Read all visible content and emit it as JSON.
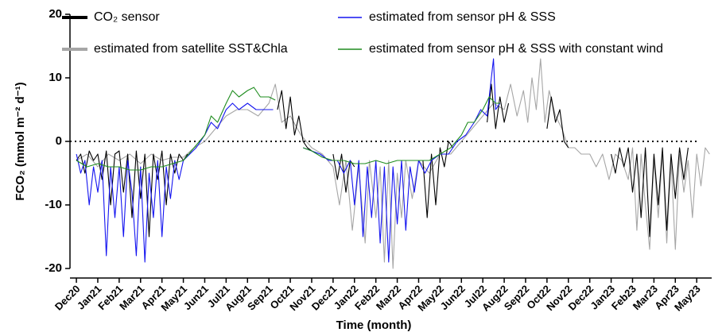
{
  "chart_data": {
    "type": "line",
    "x_label": "Time (month)",
    "y_label": "FCO₂ (mmol m⁻² d⁻¹)",
    "xlim": [
      -0.3,
      29.7
    ],
    "ylim": [
      -20,
      20
    ],
    "yticks": [
      20,
      10,
      0,
      -10,
      -20
    ],
    "xticks": [
      {
        "value": 0,
        "label": "Dec20"
      },
      {
        "value": 1,
        "label": "Jan21"
      },
      {
        "value": 2,
        "label": "Feb21"
      },
      {
        "value": 3,
        "label": "Mar21"
      },
      {
        "value": 4,
        "label": "Apr21"
      },
      {
        "value": 5,
        "label": "May21"
      },
      {
        "value": 6,
        "label": "Jun21"
      },
      {
        "value": 7,
        "label": "Jul21"
      },
      {
        "value": 8,
        "label": "Aug21"
      },
      {
        "value": 9,
        "label": "Sep21"
      },
      {
        "value": 10,
        "label": "Oct21"
      },
      {
        "value": 11,
        "label": "Nov21"
      },
      {
        "value": 12,
        "label": "Dec21"
      },
      {
        "value": 13,
        "label": "Jan22"
      },
      {
        "value": 14,
        "label": "Feb22"
      },
      {
        "value": 15,
        "label": "Mar22"
      },
      {
        "value": 16,
        "label": "Apr22"
      },
      {
        "value": 17,
        "label": "May22"
      },
      {
        "value": 18,
        "label": "Jun22"
      },
      {
        "value": 19,
        "label": "Jul22"
      },
      {
        "value": 20,
        "label": "Aug22"
      },
      {
        "value": 21,
        "label": "Sep22"
      },
      {
        "value": 22,
        "label": "Oct22"
      },
      {
        "value": 23,
        "label": "Nov22"
      },
      {
        "value": 24,
        "label": "Dec22"
      },
      {
        "value": 25,
        "label": "Jan23"
      },
      {
        "value": 26,
        "label": "Feb23"
      },
      {
        "value": 27,
        "label": "Mar23"
      },
      {
        "value": 28,
        "label": "Apr23"
      },
      {
        "value": 29,
        "label": "May23"
      }
    ],
    "reference_line": 0,
    "series": [
      {
        "name": "CO₂ sensor",
        "color": "#000000",
        "x": [
          0,
          0.2,
          0.4,
          0.6,
          0.8,
          1,
          1.2,
          1.4,
          1.6,
          1.8,
          2,
          2.2,
          2.4,
          2.6,
          2.8,
          3,
          3.2,
          3.4,
          3.6,
          3.8,
          4,
          4.2,
          4.4,
          4.6,
          4.8,
          5,
          5.2,
          5.5,
          9.4,
          9.6,
          9.8,
          10,
          10.2,
          10.4,
          10.6,
          10.8,
          11,
          11.3,
          12,
          12.2,
          12.4,
          12.6,
          12.8,
          13,
          13.5,
          16.2,
          16.4,
          16.6,
          16.8,
          17,
          17.2,
          17.4,
          17.6,
          18,
          19.2,
          19.4,
          19.6,
          19.8,
          20,
          20.2,
          21,
          22,
          22.2,
          22.4,
          22.6,
          22.8,
          23,
          24.5,
          25,
          25.2,
          25.4,
          25.6,
          25.8,
          26,
          26.2,
          26.4,
          26.6,
          26.8,
          27,
          27.2,
          27.4,
          27.6,
          27.8,
          28,
          28.2,
          28.4,
          28.6
        ],
        "values": [
          -3,
          -2,
          -5,
          -1.5,
          -3,
          -2,
          -6,
          -1.5,
          -10,
          -2,
          -1.5,
          -8,
          -2,
          -12,
          -1.5,
          -9,
          -2,
          -15,
          -2,
          -6,
          -1.5,
          -10,
          -2,
          -5,
          -2,
          -3,
          -2,
          null,
          5,
          8,
          2,
          7,
          1,
          4,
          0,
          -1,
          -1.5,
          null,
          -2,
          -6,
          -2,
          -8,
          -3,
          -4,
          null,
          -3,
          -12,
          -2,
          -10,
          -1,
          -4,
          0,
          -1,
          null,
          3,
          9,
          2,
          7,
          3,
          6,
          null,
          2,
          7,
          3,
          5,
          0,
          -1,
          null,
          -2,
          -5,
          -1,
          -4,
          -1,
          -8,
          -2,
          -12,
          -1,
          -15,
          -2,
          -10,
          -1,
          -14,
          -2,
          -9,
          -1,
          -6,
          -1
        ]
      },
      {
        "name": "estimated from satellite SST&Chla",
        "color": "#a6a6a6",
        "x": [
          0,
          0.5,
          1,
          1.5,
          2,
          2.5,
          3,
          3.5,
          4,
          4.5,
          5,
          5.5,
          6,
          6.5,
          7,
          7.5,
          8,
          8.5,
          9,
          9.3,
          9.6,
          10,
          10.5,
          11,
          11.5,
          12,
          12.3,
          12.6,
          12.9,
          13.2,
          13.5,
          13.7,
          14,
          14.2,
          14.4,
          14.6,
          14.8,
          15,
          15.2,
          15.4,
          15.7,
          16,
          16.5,
          17,
          17.5,
          18,
          18.5,
          19,
          19.5,
          20,
          20.3,
          20.6,
          20.9,
          21.1,
          21.3,
          21.5,
          21.7,
          21.9,
          22.1,
          22.4,
          22.7,
          23,
          23.3,
          23.6,
          24,
          24.3,
          24.6,
          24.9,
          25.2,
          25.5,
          25.8,
          26,
          26.2,
          26.4,
          26.6,
          26.8,
          27,
          27.2,
          27.4,
          27.6,
          27.8,
          28,
          28.2,
          28.4,
          28.6,
          28.8,
          29,
          29.2,
          29.4,
          29.6
        ],
        "values": [
          -3,
          -2,
          -4,
          -2,
          -3,
          -2,
          -3.5,
          -2,
          -3,
          -2.5,
          -2.5,
          -1,
          0,
          2,
          4,
          5,
          5,
          4,
          6,
          9,
          3,
          4,
          1,
          -1,
          -2,
          -4,
          -10,
          -3,
          -14,
          -4,
          -16,
          -3,
          -12,
          -4,
          -19,
          -3,
          -20,
          -5,
          -12,
          -3,
          -9,
          -3,
          -5,
          -2,
          -2,
          0,
          2,
          4,
          6,
          5,
          9,
          4,
          8,
          3,
          10,
          5,
          13,
          3,
          8,
          4,
          2,
          -1,
          -1,
          -2,
          -2,
          -4,
          -2,
          -6,
          -2,
          -3,
          -6,
          -1,
          -14,
          -2,
          -10,
          -17,
          -3,
          -12,
          -2,
          -16,
          -3,
          -17,
          -2,
          -8,
          -3,
          -12,
          -2,
          -7,
          -1,
          -2
        ]
      },
      {
        "name": "estimated from sensor pH & SSS",
        "color": "#1414f0",
        "x": [
          0,
          0.2,
          0.4,
          0.6,
          0.8,
          1,
          1.2,
          1.4,
          1.6,
          1.8,
          2,
          2.2,
          2.4,
          2.6,
          2.8,
          3,
          3.2,
          3.4,
          3.6,
          3.8,
          4,
          4.2,
          4.4,
          4.6,
          4.8,
          5,
          5.3,
          5.6,
          6,
          6.3,
          6.6,
          7,
          7.3,
          7.6,
          8,
          8.4,
          8.8,
          9.2,
          9.6,
          10.6,
          11,
          11.4,
          11.8,
          12.2,
          12.5,
          12.8,
          13,
          13.2,
          13.4,
          13.6,
          13.8,
          14,
          14.2,
          14.4,
          14.6,
          14.8,
          15,
          15.2,
          15.4,
          15.6,
          15.8,
          16,
          16.3,
          16.6,
          17,
          17.4,
          17.8,
          18.2,
          18.6,
          18.9,
          19.2,
          19.4,
          19.5,
          19.6,
          19.8
        ],
        "values": [
          -2,
          -5,
          -3,
          -10,
          -4,
          -8,
          -3,
          -18,
          -4,
          -12,
          -4,
          -15,
          -3,
          -8,
          -18,
          -4,
          -19,
          -5,
          -12,
          -3,
          -15,
          -4,
          -9,
          -3,
          -6,
          -3,
          -2,
          -1,
          1,
          3,
          2,
          5,
          6,
          5,
          6,
          5,
          5,
          5,
          null,
          -1,
          -1.5,
          -2,
          -3,
          -3,
          -5,
          -3,
          -10,
          -3,
          -15,
          -4,
          -12,
          -3,
          -16,
          -4,
          -19,
          -4,
          -13,
          -3,
          -14,
          -4,
          -8,
          -3,
          -5,
          -3,
          -2,
          -2,
          0,
          1,
          3,
          5,
          4,
          10,
          13,
          5,
          6
        ]
      },
      {
        "name": "estimated from sensor pH & SSS with constant wind",
        "color": "#1e8c1e",
        "x": [
          0,
          0.5,
          1,
          1.5,
          2,
          2.5,
          3,
          3.5,
          4,
          4.5,
          5,
          5.5,
          6,
          6.3,
          6.6,
          7,
          7.3,
          7.6,
          8,
          8.3,
          8.6,
          9,
          9.3,
          9.6,
          10.6,
          11,
          11.5,
          12,
          12.5,
          13,
          13.5,
          14,
          14.5,
          15,
          15.5,
          16,
          16.5,
          17,
          17.5,
          18,
          18.3,
          18.6,
          19,
          19.3,
          19.6,
          19.8
        ],
        "values": [
          -3,
          -4,
          -3.5,
          -4,
          -4,
          -4.5,
          -4.5,
          -4,
          -4,
          -3.5,
          -3,
          -1,
          1,
          4,
          3,
          6,
          8,
          7,
          8,
          8.5,
          7,
          7,
          6.5,
          null,
          -1,
          -1.5,
          -2.5,
          -3,
          -3,
          -3.5,
          -3.5,
          -3,
          -3.5,
          -3,
          -3,
          -3,
          -3,
          -2,
          -1,
          1,
          3,
          3,
          5,
          7,
          6,
          6
        ]
      }
    ]
  }
}
